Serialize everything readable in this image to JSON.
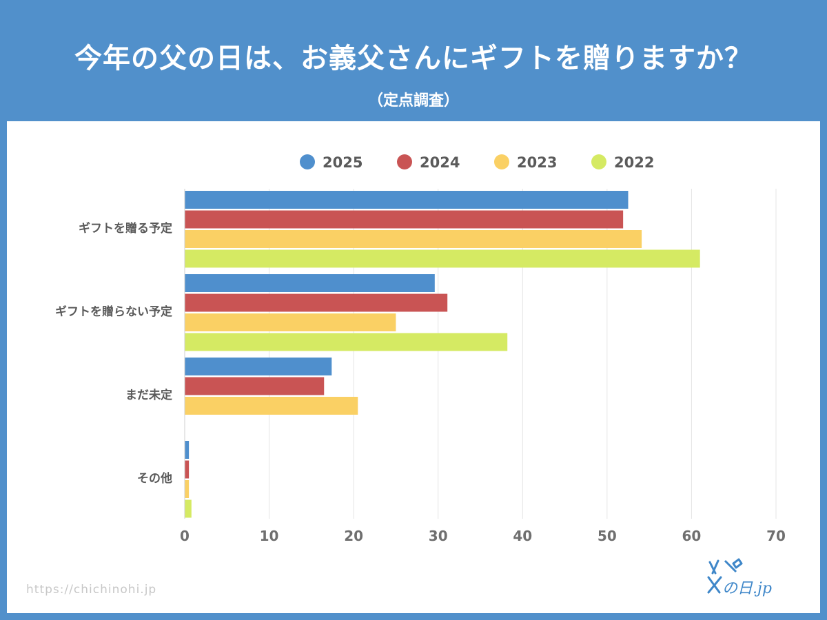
{
  "header": {
    "title": "今年の父の日は、お義父さんにギフトを贈りますか？",
    "subtitle": "（定点調査）"
  },
  "footer": {
    "url": "https://chichinohi.jp",
    "logo_text": "の日.jp"
  },
  "colors": {
    "background": "#5190cb",
    "2025": "#4f8fcd",
    "2024": "#c95454",
    "2023": "#fad064",
    "2022": "#d5ea63",
    "axis_text": "#6f6f6f"
  },
  "chart_data": {
    "type": "bar",
    "orientation": "horizontal",
    "title": "今年の父の日は、お義父さんにギフトを贈りますか？",
    "subtitle": "（定点調査）",
    "categories": [
      "ギフトを贈る予定",
      "ギフトを贈らない予定",
      "まだ未定",
      "その他"
    ],
    "series": [
      {
        "name": "2025",
        "color": "#4f8fcd",
        "values": [
          52.5,
          29.6,
          17.4,
          0.5
        ]
      },
      {
        "name": "2024",
        "color": "#c95454",
        "values": [
          51.9,
          31.1,
          16.5,
          0.5
        ]
      },
      {
        "name": "2023",
        "color": "#fad064",
        "values": [
          54.1,
          25.0,
          20.5,
          0.5
        ]
      },
      {
        "name": "2022",
        "color": "#d5ea63",
        "values": [
          61.0,
          38.2,
          0,
          0.8
        ]
      }
    ],
    "xlim": [
      0,
      70
    ],
    "xticks": [
      0,
      10,
      20,
      30,
      40,
      50,
      60,
      70
    ],
    "xlabel": "",
    "ylabel": "",
    "grid": true,
    "legend_position": "top"
  }
}
